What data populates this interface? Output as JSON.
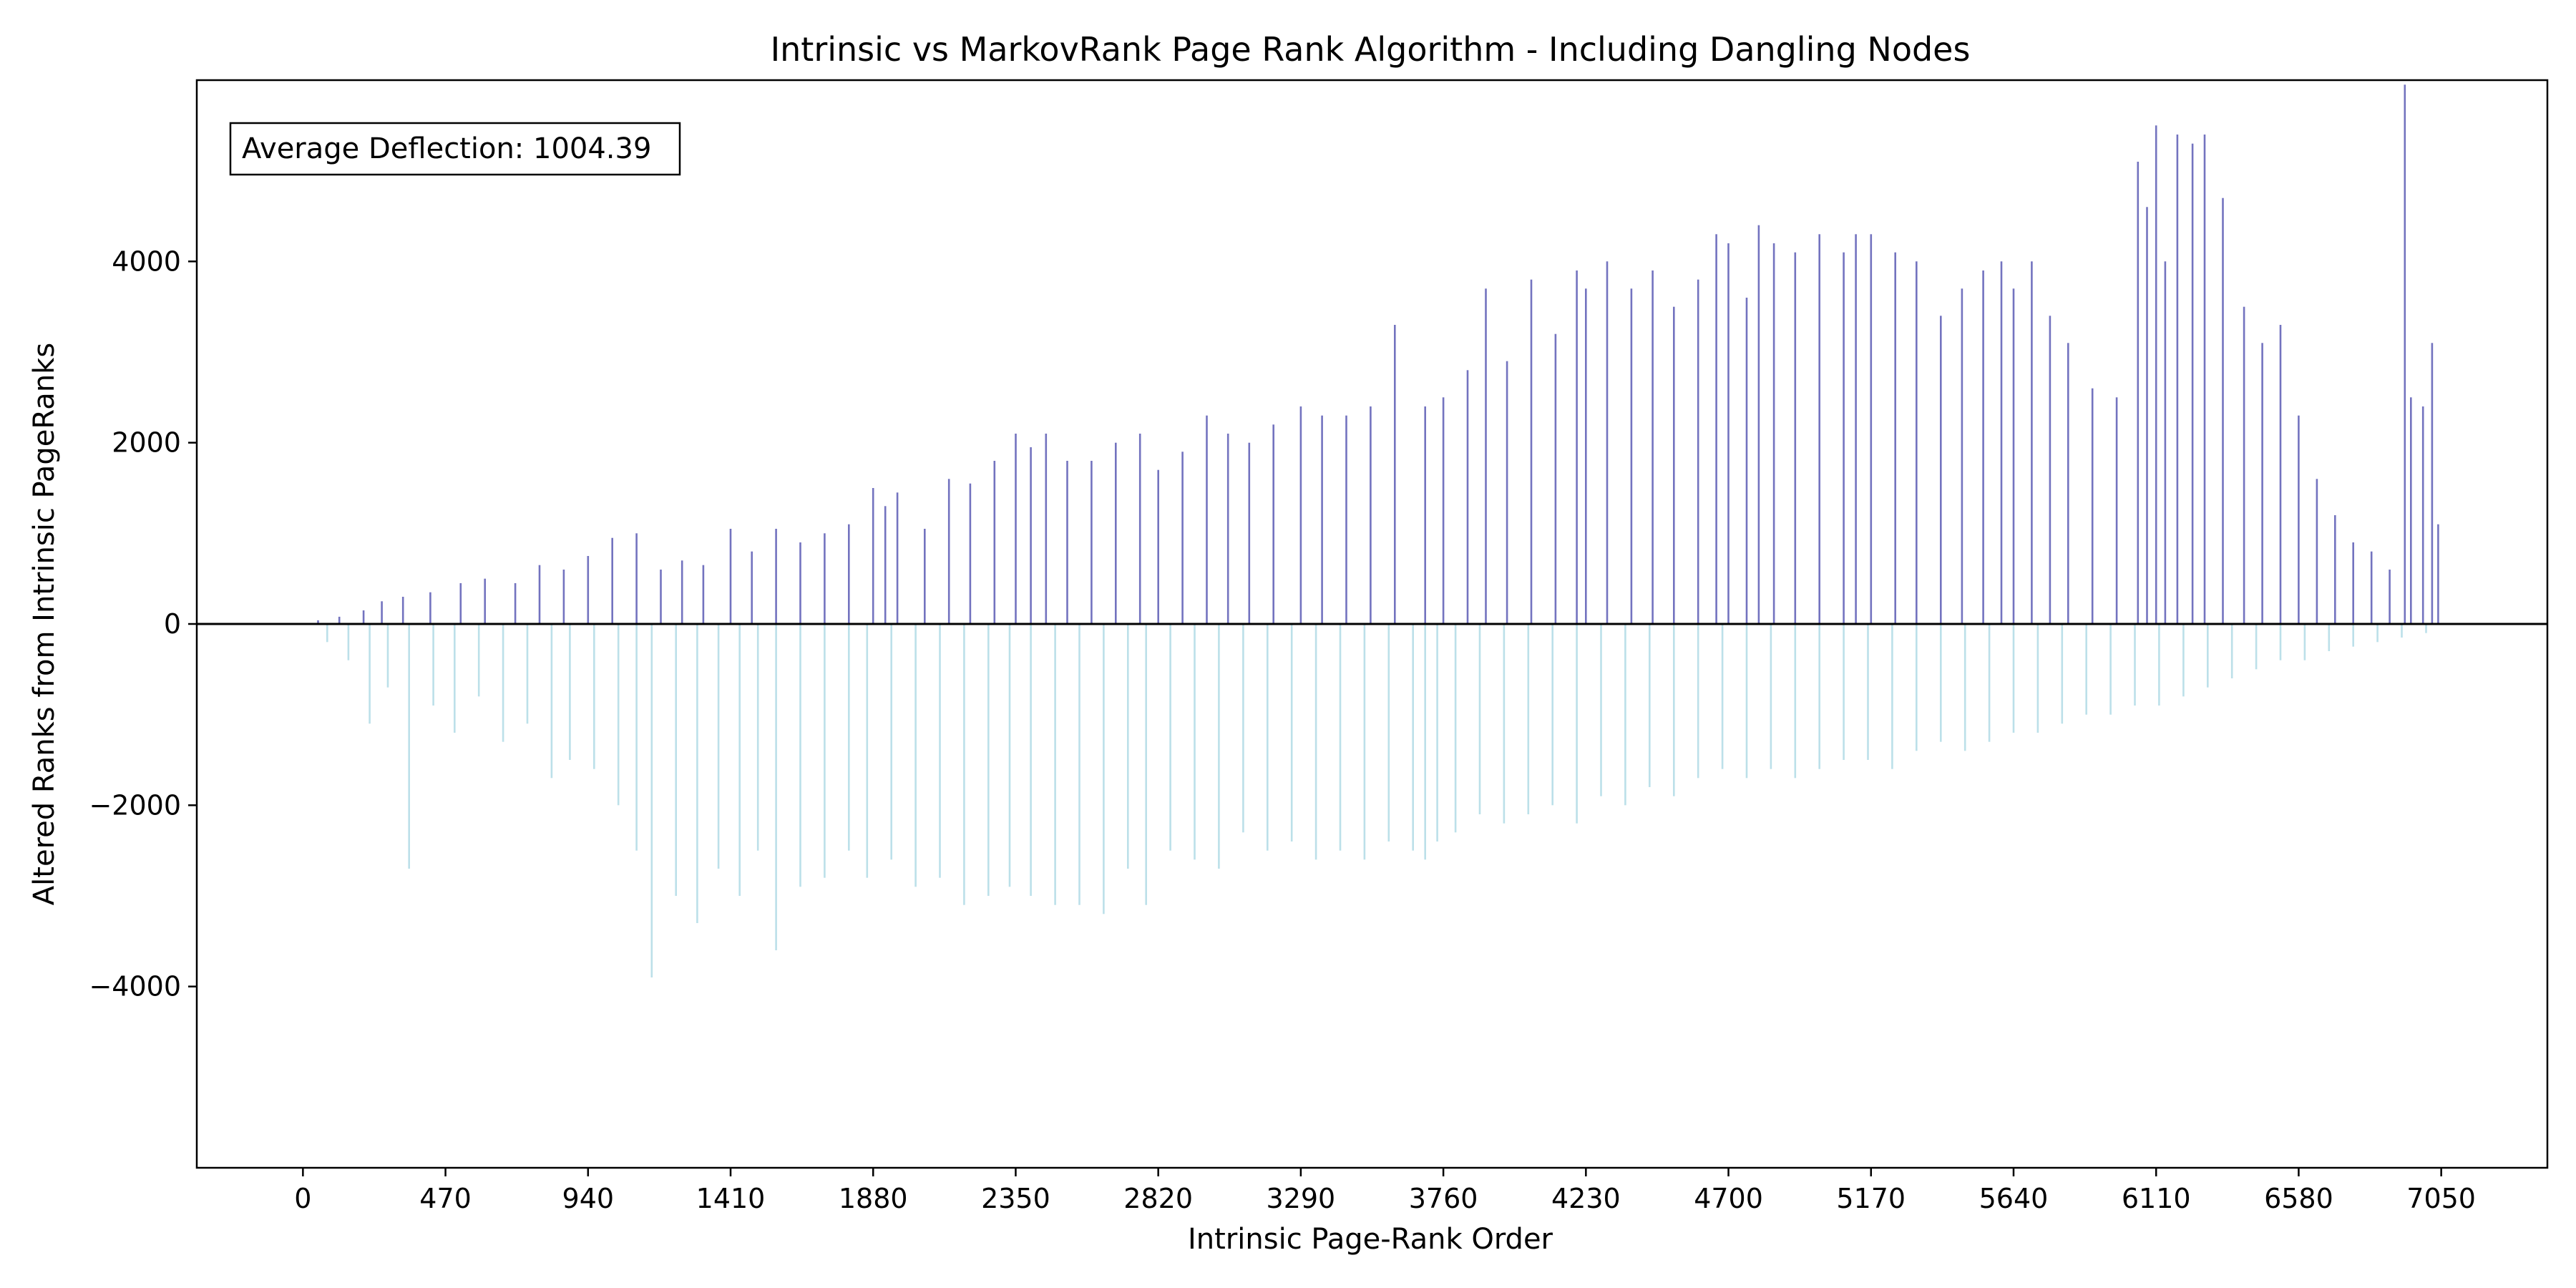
{
  "chart_data": {
    "type": "bar",
    "title": "Intrinsic vs MarkovRank Page Rank Algorithm - Including Dangling Nodes",
    "xlabel": "Intrinsic Page-Rank Order",
    "ylabel": "Altered Ranks from Intrinsic PageRanks",
    "xlim": [
      -350,
      7400
    ],
    "ylim": [
      -6000,
      6000
    ],
    "x_ticks": [
      0,
      470,
      940,
      1410,
      1880,
      2350,
      2820,
      3290,
      3760,
      4230,
      4700,
      5170,
      5640,
      6110,
      6580,
      7050
    ],
    "x_tick_labels": [
      "0",
      "470",
      "940",
      "1410",
      "1880",
      "2350",
      "2820",
      "3290",
      "3760",
      "4230",
      "4700",
      "5170",
      "5640",
      "6110",
      "6580",
      "7050"
    ],
    "y_ticks": [
      -4000,
      -2000,
      0,
      2000,
      4000
    ],
    "y_tick_labels": [
      "−4000",
      "−2000",
      "0",
      "2000",
      "4000"
    ],
    "grid": false,
    "annotation": "Average Deflection: 1004.39",
    "annotation_position": "top-left",
    "zero_line": true,
    "colors": {
      "positive": "#00008b",
      "negative": "#9fd3e0",
      "zero_line": "#000000"
    },
    "n_points": 7050,
    "series": [
      {
        "sign": "positive",
        "x": [
          50,
          120,
          200,
          260,
          330,
          420,
          520,
          600,
          700,
          780,
          860,
          940,
          1020,
          1100,
          1180,
          1250,
          1320,
          1410,
          1480,
          1560,
          1640,
          1720,
          1800,
          1880,
          1920,
          1960,
          2050,
          2130,
          2200,
          2280,
          2350,
          2400,
          2450,
          2520,
          2600,
          2680,
          2760,
          2820,
          2900,
          2980,
          3050,
          3120,
          3200,
          3290,
          3360,
          3440,
          3520,
          3600,
          3700,
          3760,
          3840,
          3900,
          3970,
          4050,
          4130,
          4200,
          4230,
          4300,
          4380,
          4450,
          4520,
          4600,
          4660,
          4700,
          4760,
          4800,
          4850,
          4920,
          5000,
          5080,
          5120,
          5170,
          5250,
          5320,
          5400,
          5470,
          5540,
          5600,
          5640,
          5700,
          5760,
          5820,
          5900,
          5980,
          6050,
          6080,
          6110,
          6140,
          6180,
          6230,
          6270,
          6330,
          6400,
          6460,
          6520,
          6580,
          6640,
          6700,
          6760,
          6820,
          6880,
          6930,
          6950,
          6990,
          7020,
          7040
        ],
        "values": [
          40,
          80,
          150,
          250,
          300,
          350,
          450,
          500,
          450,
          650,
          600,
          750,
          950,
          1000,
          600,
          700,
          650,
          1050,
          800,
          1050,
          900,
          1000,
          1100,
          1500,
          1300,
          1450,
          1050,
          1600,
          1550,
          1800,
          2100,
          1950,
          2100,
          1800,
          1800,
          2000,
          2100,
          1700,
          1900,
          2300,
          2100,
          2000,
          2200,
          2400,
          2300,
          2300,
          2400,
          3300,
          2400,
          2500,
          2800,
          3700,
          2900,
          3800,
          3200,
          3900,
          3700,
          4000,
          3700,
          3900,
          3500,
          3800,
          4300,
          4200,
          3600,
          4400,
          4200,
          4100,
          4300,
          4100,
          4300,
          4300,
          4100,
          4000,
          3400,
          3700,
          3900,
          4000,
          3700,
          4000,
          3400,
          3100,
          2600,
          2500,
          5100,
          4600,
          5500,
          4000,
          5400,
          5300,
          5400,
          4700,
          3500,
          3100,
          3300,
          2300,
          1600,
          1200,
          900,
          800,
          600,
          5950,
          2500,
          2400,
          3100,
          1100
        ]
      },
      {
        "sign": "negative",
        "x": [
          80,
          150,
          220,
          280,
          350,
          430,
          500,
          580,
          660,
          740,
          820,
          880,
          960,
          1040,
          1100,
          1150,
          1230,
          1300,
          1370,
          1440,
          1500,
          1560,
          1640,
          1720,
          1800,
          1860,
          1940,
          2020,
          2100,
          2180,
          2260,
          2330,
          2400,
          2480,
          2560,
          2640,
          2720,
          2780,
          2860,
          2940,
          3020,
          3100,
          3180,
          3260,
          3340,
          3420,
          3500,
          3580,
          3660,
          3700,
          3740,
          3800,
          3880,
          3960,
          4040,
          4120,
          4200,
          4280,
          4360,
          4440,
          4520,
          4600,
          4680,
          4760,
          4840,
          4920,
          5000,
          5080,
          5160,
          5240,
          5320,
          5400,
          5480,
          5560,
          5640,
          5720,
          5800,
          5880,
          5960,
          6040,
          6120,
          6200,
          6280,
          6360,
          6440,
          6520,
          6600,
          6680,
          6760,
          6840,
          6920,
          7000
        ],
        "values": [
          -200,
          -400,
          -1100,
          -700,
          -2700,
          -900,
          -1200,
          -800,
          -1300,
          -1100,
          -1700,
          -1500,
          -1600,
          -2000,
          -2500,
          -3900,
          -3000,
          -3300,
          -2700,
          -3000,
          -2500,
          -3600,
          -2900,
          -2800,
          -2500,
          -2800,
          -2600,
          -2900,
          -2800,
          -3100,
          -3000,
          -2900,
          -3000,
          -3100,
          -3100,
          -3200,
          -2700,
          -3100,
          -2500,
          -2600,
          -2700,
          -2300,
          -2500,
          -2400,
          -2600,
          -2500,
          -2600,
          -2400,
          -2500,
          -2600,
          -2400,
          -2300,
          -2100,
          -2200,
          -2100,
          -2000,
          -2200,
          -1900,
          -2000,
          -1800,
          -1900,
          -1700,
          -1600,
          -1700,
          -1600,
          -1700,
          -1600,
          -1500,
          -1500,
          -1600,
          -1400,
          -1300,
          -1400,
          -1300,
          -1200,
          -1200,
          -1100,
          -1000,
          -1000,
          -900,
          -900,
          -800,
          -700,
          -600,
          -500,
          -400,
          -400,
          -300,
          -250,
          -200,
          -150,
          -100
        ]
      }
    ]
  }
}
